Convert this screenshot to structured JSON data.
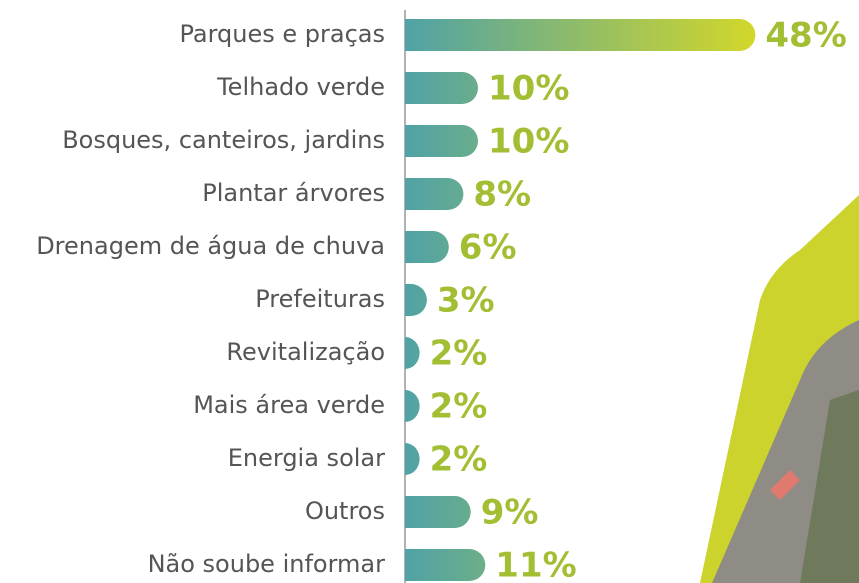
{
  "chart_data": {
    "type": "bar",
    "orientation": "horizontal",
    "categories": [
      "Parques e praças",
      "Telhado verde",
      "Bosques, canteiros, jardins",
      "Plantar árvores",
      "Drenagem de água de chuva",
      "Prefeituras",
      "Revitalização",
      "Mais área verde",
      "Energia solar",
      "Outros",
      "Não soube informar"
    ],
    "values": [
      48,
      10,
      10,
      8,
      6,
      3,
      2,
      2,
      2,
      9,
      11
    ],
    "value_labels": [
      "48%",
      "10%",
      "10%",
      "8%",
      "6%",
      "3%",
      "2%",
      "2%",
      "2%",
      "9%",
      "11%"
    ],
    "xlim": [
      0,
      50
    ],
    "colors": [
      "#4fa2a6",
      "#d2d72a"
    ],
    "label_color": "#a2bf34"
  }
}
